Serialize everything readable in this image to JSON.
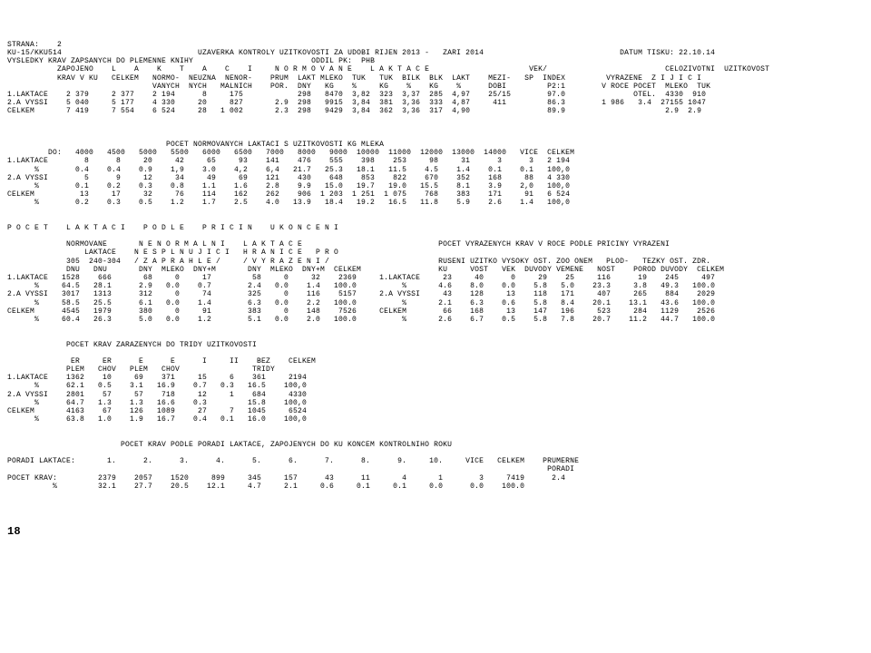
{
  "header": {
    "strana": "STRANA:    2",
    "code": "KU-15/KKU514",
    "title": "UZAVERKA KONTROLY UZITKOVOSTI ZA UDOBI RIJEN 2013 -   ZARI 2014",
    "datum": "DATUM TISKU: 22.10.14",
    "subtitle": "VYSLEDKY KRAV ZAPSANYCH DO PLEMENNE KNIHY",
    "oddil": "ODDIL PK:  PHB"
  },
  "block1": {
    "h1": "           ZAPOJENO    L    A    K    T    A    C    I     N O R M O V A N E    L A K T A C E                      VEK/                          CELOZIVOTNI  UZITKOVOST",
    "h2": "           KRAV V KU   CELKEM   NORMO-  NEUZNA  NENOR-    PRUM  LAKT MLEKO  TUK   TUK  BILK  BLK  LAKT    MEZI-   SP  INDEX         VYRAZENE  Z I J I C I",
    "h3": "                                VANYCH  NYCH   MALNICH    POR.  DNY   KG    %     KG    %    KG    %      DOBI         P2:1        V ROCE POCET  MLEKO  TUK",
    "r1": "1.LAKTACE    2 379     2 377    2 194      8     175            298   8470  3,82  323  3,37  285  4,97    25/15        97.0               OTEL.  4330  910",
    "r2": "2.A VYSSI    5 040     5 177    4 330     20     827       2.9  298   9915  3,84  381  3,36  333  4,87     411         86.3        1 986   3.4  27155 1047",
    "r3": "CELKEM       7 419     7 554    6 524     28   1 002       2.3  298   9429  3,84  362  3,36  317  4,90                 89.9                      2.9  2.9"
  },
  "block2": {
    "title": "                                   POCET NORMOVANYCH LAKTACI S UZITKOVOSTI KG MLEKA",
    "h": "         DO:   4000   4500   5000   5500   6000   6500   7000   8000   9000  10000  11000  12000  13000  14000   VICE  CELKEM",
    "r1": "1.LAKTACE        8      8     20     42     65     93    141    476    555    398    253     98     31      3      3   2 194",
    "p1": "      %        0.4    0.4    0.9    1,9    3.0    4,2    6,4   21.7   25.3   18.1   11.5    4.5    1.4    0.1    0.1   100,0",
    "r2": "2.A VYSSI        5      9     12     34     49     69    121    430    648    853    822    670    352    168     88   4 330",
    "p2": "      %        0.1    0.2    0.3    0.8    1.1    1.6    2.8    9.9   15.0   19.7   19.0   15.5    8.1    3.9    2,0   100,0",
    "r3": "CELKEM          13     17     32     76    114    162    262    906  1 203  1 251  1 075    768    383    171     91   6 524",
    "p3": "      %        0.2    0.3    0.5    1.2    1.7    2.5    4.0   13.9   18.4   19.2   16.5   11.8    5.9    2.6    1.4   100,0"
  },
  "block3": {
    "title": "P O C E T    L A K T A C I    P O D L E    P R I C I N    U K O N C E N I",
    "h1": "             NORMOVANE       N E N O R M A L N I    L A K T A C E                              POCET VYRAZENYCH KRAV V ROCE PODLE PRICINY VYRAZENI",
    "h2": "                 LAKTACE    N E S P L N U J I C I   H R A N I C E   P R O",
    "h3": "             305  240-304   / Z A P R A H L E /     / V Y R A Z E N I /                        RUSENI UZITKO VYSOKY OST. ZOO ONEM   PLOD-   TEZKY OST. ZDR.",
    "h4": "             DNU   DNU       DNY  MLEKO  DNY+M       DNY  MLEKO  DNY+M  CELKEM                 KU     VOST   VEK  DUVODY VEMENE   NOST    POROD DUVODY  CELKEM",
    "r1": "1.LAKTACE   1528    666       68     0     17         58     0     32    2369     1.LAKTACE     23     40      0     29    25     116      19    245     497",
    "p1": "      %     64.5   28.1      2.9   0.0    0.7        2.4   0.0    1.4   100.0          %       4.6    8.0    0.0    5.8   5.0    23.3     3.8   49.3   100.0",
    "r2": "2.A VYSSI   3017   1313      312     0     74        325     0    116    5157     2.A VYSSI     43    128     13    118   171     407     265    884    2029",
    "p2": "      %     58.5   25.5      6.1   0.0    1.4        6.3   0.0    2.2   100.0          %       2.1    6.3    0.6    5.8   8.4    20.1    13.1   43.6   100.0",
    "r3": "CELKEM      4545   1979      380     0     91        383     0    148    7526     CELKEM        66    168     13    147   196     523     284   1129    2526",
    "p3": "      %     60.4   26.3      5.0   0.0    1.2        5.1   0.0    2.0   100.0          %       2.6    6.7    0.5    5.8   7.8    20.7    11.2   44.7   100.0"
  },
  "block4": {
    "title": "             POCET KRAV ZARAZENYCH DO TRIDY UZITKOVOSTI",
    "h1": "              ER     ER      E      E      I     II    BEZ    CELKEM",
    "h2": "             PLEM   CHOV   PLEM   CHOV                TRIDY",
    "r1": "1.LAKTACE    1362    10     69    371     15     6    361     2194",
    "p1": "      %      62.1   0.5    3.1   16.9    0.7   0.3   16.5    100,0",
    "r2": "2.A VYSSI    2801    57     57    718     12     1    684     4330",
    "p2": "      %      64.7   1.3    1.3   16.6    0.3         15.8    100,0",
    "r3": "CELKEM       4163    67    126   1089     27     7   1045     6524",
    "p3": "      %      63.8   1.0    1.9   16.7    0.4   0.1   16.0    100,0"
  },
  "block5": {
    "title": "                         POCET KRAV PODLE PORADI LAKTACE, ZAPOJENYCH DO KU KONCEM KONTROLNIHO ROKU",
    "h": "PORADI LAKTACE:       1.      2.      3.      4.      5.      6.      7.      8.      9.     10.     VICE   CELKEM    PRUMERNE",
    "h2": "                                                                                                                       PORADI",
    "r": "POCET KRAV:         2379    2057    1520     899     345     157      43      11       4       1        3     7419      2.4",
    "p": "          %         32.1    27.7    20.5    12.1     4.7     2.1     0.6     0.1     0.1     0.0      0.0    100.0"
  },
  "pagenum": "18"
}
